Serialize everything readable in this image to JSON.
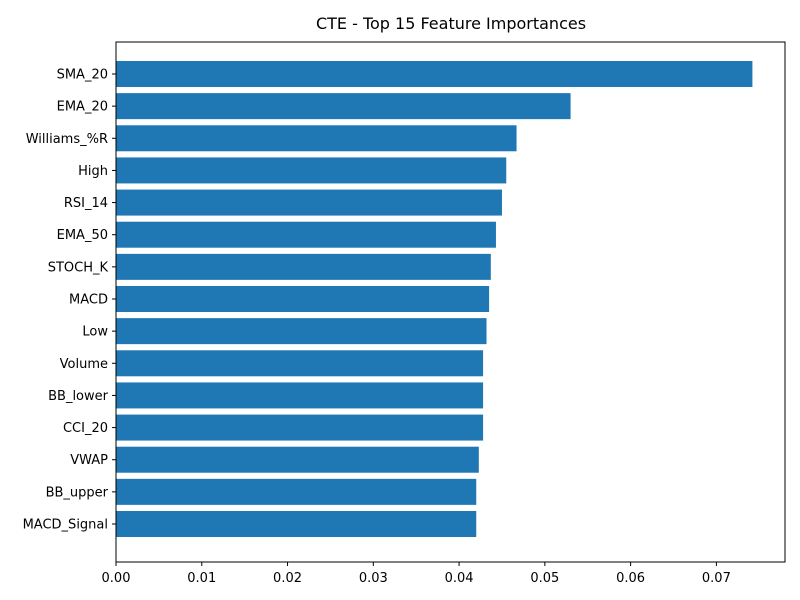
{
  "chart_data": {
    "type": "bar",
    "orientation": "horizontal",
    "title": "CTE - Top 15 Feature Importances",
    "xlabel": "",
    "ylabel": "",
    "categories": [
      "SMA_20",
      "EMA_20",
      "Williams_%R",
      "High",
      "RSI_14",
      "EMA_50",
      "STOCH_K",
      "MACD",
      "Low",
      "Volume",
      "BB_lower",
      "CCI_20",
      "VWAP",
      "BB_upper",
      "MACD_Signal"
    ],
    "values": [
      0.0742,
      0.053,
      0.0467,
      0.0455,
      0.045,
      0.0443,
      0.0437,
      0.0435,
      0.0432,
      0.0428,
      0.0428,
      0.0428,
      0.0423,
      0.042,
      0.042
    ],
    "xlim": [
      0.0,
      0.078
    ],
    "xticks": [
      "0.00",
      "0.01",
      "0.02",
      "0.03",
      "0.04",
      "0.05",
      "0.06",
      "0.07"
    ],
    "bar_color": "#1f77b4",
    "grid": false,
    "legend": "none"
  }
}
